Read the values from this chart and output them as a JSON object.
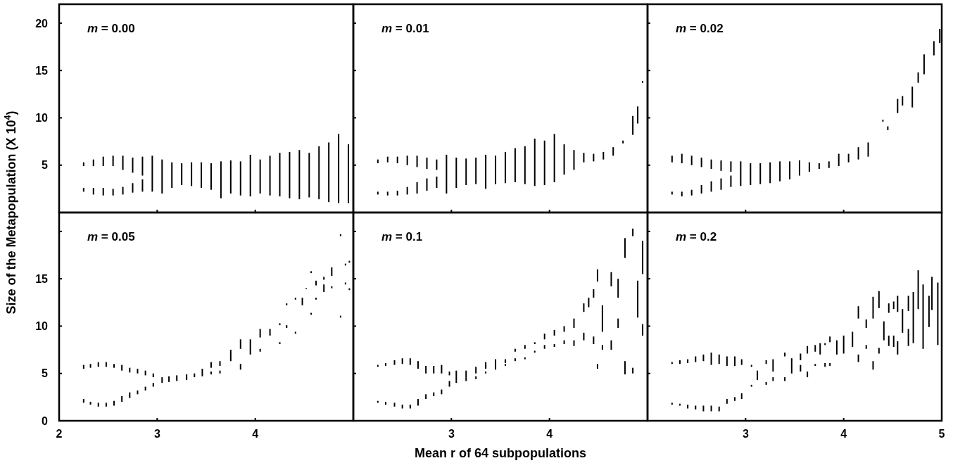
{
  "chart_data": [
    {
      "type": "bar",
      "title": "m = 0.00",
      "ylabel": "Size of the Metapopulation (X 10$^{4}$)",
      "xlim": [
        2,
        5
      ],
      "ylim": [
        0,
        22
      ],
      "xticks": [
        3,
        4
      ],
      "yticks": [
        5,
        10,
        15,
        20
      ],
      "tick_labels": "y",
      "series": [
        {
          "color": "#000000",
          "x": [
            2.25,
            2.35,
            2.45,
            2.55,
            2.65,
            2.75,
            2.85,
            2.95,
            3.05,
            3.15,
            3.25,
            3.35,
            3.45,
            3.55,
            3.65,
            3.75,
            3.85,
            3.95,
            4.05,
            4.15,
            4.25,
            4.35,
            4.45,
            4.55,
            4.65,
            4.75,
            4.85,
            4.95
          ],
          "base": [
            4.9,
            4.9,
            4.9,
            4.9,
            4.5,
            4.2,
            3.9,
            2.2,
            2.0,
            2.6,
            2.9,
            2.8,
            2.6,
            2.4,
            1.5,
            2.0,
            1.8,
            1.7,
            2.0,
            1.8,
            1.7,
            1.5,
            1.4,
            1.6,
            1.4,
            1.1,
            1.0,
            1.0
          ],
          "values": [
            0.4,
            0.7,
            1.0,
            1.1,
            1.5,
            1.6,
            2.0,
            3.8,
            3.6,
            2.7,
            2.3,
            2.5,
            2.7,
            2.8,
            3.9,
            3.5,
            3.6,
            4.4,
            3.6,
            4.2,
            4.6,
            4.9,
            5.2,
            4.7,
            5.6,
            6.3,
            7.3,
            6.2
          ]
        },
        {
          "color": "#000000",
          "x": [
            2.25,
            2.35,
            2.45,
            2.55,
            2.65,
            2.75,
            2.85
          ],
          "base": [
            2.2,
            1.9,
            1.8,
            1.8,
            1.9,
            2.1,
            2.2
          ],
          "values": [
            0.4,
            0.7,
            0.8,
            0.7,
            0.8,
            1.0,
            1.3
          ]
        }
      ]
    },
    {
      "type": "bar",
      "title": "m = 0.01",
      "xlim": [
        2,
        5
      ],
      "ylim": [
        0,
        22
      ],
      "xticks": [
        3,
        4
      ],
      "yticks": [
        5,
        10,
        15,
        20
      ],
      "tick_labels": false,
      "series": [
        {
          "color": "#000000",
          "x": [
            2.25,
            2.35,
            2.45,
            2.55,
            2.65,
            2.75,
            2.85,
            2.95,
            3.05,
            3.15,
            3.25,
            3.35,
            3.45,
            3.55,
            3.65,
            3.75,
            3.85,
            3.95,
            4.05,
            4.15,
            4.25,
            4.35,
            4.45,
            4.55,
            4.65,
            4.75,
            4.85,
            4.9,
            4.95
          ],
          "base": [
            5.2,
            5.3,
            5.2,
            5.0,
            4.8,
            4.6,
            4.5,
            2.0,
            2.6,
            2.9,
            3.0,
            2.5,
            3.0,
            3.1,
            3.2,
            3.0,
            2.8,
            2.9,
            3.2,
            4.0,
            4.5,
            5.3,
            5.4,
            5.6,
            6.0,
            7.3,
            8.2,
            9.4,
            13.7
          ],
          "values": [
            0.4,
            0.6,
            0.7,
            1.0,
            1.2,
            1.2,
            1.1,
            4.1,
            3.2,
            2.8,
            2.8,
            3.6,
            3.0,
            3.3,
            3.6,
            4.0,
            5.0,
            4.7,
            5.1,
            3.2,
            2.1,
            1.0,
            0.8,
            0.8,
            0.9,
            0.3,
            2.0,
            1.8,
            0.2
          ]
        },
        {
          "color": "#000000",
          "x": [
            2.25,
            2.35,
            2.45,
            2.55,
            2.65,
            2.75,
            2.85
          ],
          "base": [
            1.9,
            1.8,
            1.8,
            1.9,
            2.0,
            2.3,
            2.6
          ],
          "values": [
            0.3,
            0.4,
            0.5,
            0.8,
            1.2,
            1.3,
            1.2
          ]
        }
      ]
    },
    {
      "type": "bar",
      "title": "m = 0.02",
      "xlim": [
        2,
        5
      ],
      "ylim": [
        0,
        22
      ],
      "xticks": [
        3,
        4
      ],
      "yticks": [
        5,
        10,
        15,
        20
      ],
      "tick_labels": false,
      "series": [
        {
          "color": "#000000",
          "x": [
            2.25,
            2.35,
            2.45,
            2.55,
            2.65,
            2.75,
            2.85,
            2.95,
            3.05,
            3.15,
            3.25,
            3.35,
            3.45,
            3.55,
            3.65,
            3.75,
            3.85,
            3.95,
            4.05,
            4.15,
            4.25,
            4.4,
            4.45,
            4.55,
            4.6,
            4.7,
            4.76,
            4.82,
            4.92,
            4.98
          ],
          "base": [
            5.3,
            5.2,
            5.0,
            4.8,
            4.6,
            4.4,
            4.3,
            2.8,
            2.9,
            3.0,
            3.1,
            3.3,
            3.5,
            3.9,
            4.3,
            4.6,
            4.7,
            4.9,
            5.3,
            5.6,
            5.9,
            9.6,
            8.7,
            10.5,
            11.3,
            11.1,
            13.7,
            14.6,
            16.6,
            17.9
          ],
          "values": [
            0.7,
            1.0,
            1.0,
            1.0,
            1.0,
            1.1,
            1.1,
            2.6,
            2.3,
            2.2,
            2.2,
            2.1,
            1.9,
            1.6,
            1.0,
            0.6,
            0.7,
            1.3,
            0.9,
            1.3,
            1.5,
            0.2,
            0.4,
            1.5,
            1.0,
            2.2,
            1.1,
            2.1,
            1.5,
            1.5
          ]
        },
        {
          "color": "#000000",
          "x": [
            2.25,
            2.35,
            2.45,
            2.55,
            2.65,
            2.75,
            2.85
          ],
          "base": [
            1.9,
            1.7,
            1.8,
            2.0,
            2.2,
            2.4,
            2.7
          ],
          "values": [
            0.3,
            0.5,
            0.6,
            0.9,
            1.1,
            1.2,
            1.2
          ]
        }
      ]
    },
    {
      "type": "bar",
      "title": "m = 0.05",
      "xlim": [
        2,
        5
      ],
      "ylim": [
        0,
        22
      ],
      "xticks": [
        2,
        3,
        4
      ],
      "yticks": [
        0,
        5,
        10,
        15,
        {
          "value": 20,
          "label": null
        }
      ],
      "series": [
        {
          "color": "#000000",
          "x": [
            2.25,
            2.32,
            2.4,
            2.48,
            2.56,
            2.64,
            2.72,
            2.8,
            2.88,
            2.96,
            3.05,
            3.12,
            3.2,
            3.3,
            3.38,
            3.46,
            3.55,
            3.64,
            3.75,
            3.85,
            3.95,
            4.05,
            4.15,
            4.25,
            4.32,
            4.41,
            4.48,
            4.52,
            4.57,
            4.62,
            4.7,
            4.78,
            4.87,
            4.92,
            4.96
          ],
          "base": [
            5.5,
            5.6,
            5.7,
            5.7,
            5.6,
            5.3,
            5.1,
            5.0,
            4.8,
            4.6,
            4.0,
            4.1,
            4.2,
            4.3,
            4.6,
            4.7,
            5.6,
            5.8,
            6.3,
            7.6,
            7.0,
            8.8,
            9.0,
            10.1,
            12.2,
            12.8,
            12.2,
            13.9,
            15.6,
            14.3,
            14.9,
            15.3,
            19.5,
            16.4,
            16.7
          ],
          "values": [
            0.4,
            0.4,
            0.5,
            0.5,
            0.4,
            0.6,
            0.5,
            0.5,
            0.5,
            0.4,
            0.6,
            0.6,
            0.6,
            0.6,
            0.4,
            0.8,
            0.6,
            0.5,
            1.2,
            1.0,
            1.6,
            0.9,
            0.7,
            0.2,
            0.2,
            0.2,
            0.8,
            0.1,
            0.2,
            0.5,
            0.3,
            0.9,
            0.2,
            0.2,
            0.2
          ]
        },
        {
          "color": "#000000",
          "x": [
            2.25,
            2.32,
            2.4,
            2.48,
            2.56,
            2.64,
            2.72,
            2.8,
            2.88,
            2.96,
            3.55,
            3.64,
            3.85,
            4.05,
            4.25,
            4.32,
            4.41,
            4.57,
            4.62,
            4.7,
            4.78,
            4.87,
            4.92,
            4.96
          ],
          "base": [
            1.9,
            1.7,
            1.5,
            1.5,
            1.6,
            2.0,
            2.4,
            2.8,
            3.2,
            3.6,
            4.9,
            5.0,
            5.4,
            7.3,
            8.1,
            9.8,
            9.2,
            11.2,
            12.8,
            13.6,
            14.0,
            10.9,
            14.4,
            13.8
          ],
          "values": [
            0.4,
            0.3,
            0.4,
            0.4,
            0.5,
            0.6,
            0.6,
            0.4,
            0.4,
            0.4,
            0.3,
            0.3,
            0.6,
            0.3,
            0.2,
            0.3,
            0.2,
            0.2,
            0.2,
            0.8,
            0.2,
            0.2,
            0.2,
            0.2
          ]
        }
      ]
    },
    {
      "type": "bar",
      "title": "m = 0.1",
      "xlabel": "Mean r of 64 subpopulations",
      "xlim": [
        2,
        5
      ],
      "ylim": [
        0,
        22
      ],
      "xticks": [
        3,
        4
      ],
      "yticks": [
        0,
        5,
        10,
        15,
        20
      ],
      "tick_labels": "x",
      "series": [
        {
          "color": "#000000",
          "x": [
            2.25,
            2.33,
            2.42,
            2.5,
            2.58,
            2.66,
            2.74,
            2.82,
            2.9,
            2.98,
            3.05,
            3.15,
            3.25,
            3.35,
            3.45,
            3.55,
            3.65,
            3.75,
            3.85,
            3.95,
            4.05,
            4.15,
            4.25,
            4.35,
            4.4,
            4.45,
            4.49,
            4.54,
            4.63,
            4.7,
            4.77,
            4.85,
            4.9,
            4.95
          ],
          "base": [
            5.7,
            5.8,
            5.9,
            6.0,
            5.9,
            5.5,
            5.0,
            5.0,
            5.0,
            4.8,
            4.3,
            4.6,
            5.0,
            5.5,
            5.8,
            6.1,
            7.3,
            7.6,
            8.1,
            8.6,
            9.0,
            9.4,
            9.8,
            11.5,
            12.0,
            13.0,
            14.7,
            9.4,
            14.2,
            13.0,
            17.2,
            19.5,
            10.9,
            15.5
          ],
          "values": [
            0.2,
            0.3,
            0.5,
            0.6,
            0.7,
            0.8,
            0.8,
            0.8,
            0.9,
            0.4,
            1.0,
            0.7,
            0.7,
            0.7,
            0.7,
            0.4,
            0.3,
            0.4,
            0.2,
            0.6,
            0.6,
            0.6,
            1.0,
            0.9,
            1.0,
            0.9,
            1.3,
            2.8,
            1.5,
            2.0,
            2.1,
            0.8,
            3.9,
            3.5
          ]
        },
        {
          "color": "#000000",
          "x": [
            2.25,
            2.33,
            2.42,
            2.5,
            2.58,
            2.66,
            2.74,
            2.82,
            2.9,
            2.98,
            3.05,
            3.15,
            3.25,
            3.35,
            3.45,
            3.55,
            3.65,
            3.75,
            3.85,
            3.95,
            4.05,
            4.15,
            4.25,
            4.35,
            4.45,
            4.49,
            4.54,
            4.63,
            4.7,
            4.77,
            4.85,
            4.95
          ],
          "base": [
            1.9,
            1.7,
            1.5,
            1.3,
            1.3,
            1.6,
            2.3,
            2.6,
            2.8,
            3.6,
            4.0,
            4.2,
            4.4,
            5.0,
            5.4,
            5.8,
            6.3,
            6.5,
            7.2,
            7.6,
            7.8,
            8.1,
            7.9,
            8.5,
            8.1,
            5.5,
            7.5,
            7.5,
            9.8,
            4.9,
            5.0,
            9.0
          ],
          "values": [
            0.2,
            0.3,
            0.4,
            0.4,
            0.4,
            0.7,
            0.5,
            0.4,
            0.5,
            0.6,
            0.3,
            0.4,
            0.3,
            0.2,
            0.4,
            0.2,
            0.3,
            0.2,
            0.2,
            0.4,
            0.3,
            0.4,
            0.6,
            0.8,
            0.8,
            0.5,
            0.5,
            1.0,
            1.0,
            1.4,
            0.6,
            1.2
          ]
        }
      ]
    },
    {
      "type": "bar",
      "title": "m = 0.2",
      "xlim": [
        2,
        5
      ],
      "ylim": [
        0,
        22
      ],
      "xticks": [
        3,
        4,
        5
      ],
      "yticks": [
        0,
        5,
        10,
        15,
        20
      ],
      "tick_labels": "x",
      "series": [
        {
          "color": "#000000",
          "x": [
            2.25,
            2.33,
            2.41,
            2.49,
            2.57,
            2.65,
            2.73,
            2.81,
            2.89,
            2.96,
            3.06,
            3.12,
            3.21,
            3.28,
            3.4,
            3.47,
            3.56,
            3.63,
            3.71,
            3.76,
            3.81,
            3.86,
            3.93,
            4.0,
            4.09,
            4.15,
            4.23,
            4.3,
            4.36,
            4.41,
            4.46,
            4.51,
            4.55,
            4.6,
            4.66,
            4.71,
            4.76,
            4.81,
            4.87,
            4.9,
            4.96
          ],
          "base": [
            6.0,
            6.0,
            6.1,
            6.2,
            6.3,
            5.9,
            6.0,
            5.8,
            5.8,
            5.9,
            5.7,
            4.3,
            6.0,
            5.2,
            6.8,
            5.0,
            6.4,
            7.1,
            7.3,
            7.0,
            8.0,
            8.3,
            7.0,
            7.1,
            7.8,
            10.8,
            9.8,
            10.8,
            11.9,
            8.5,
            11.4,
            11.8,
            11.5,
            9.3,
            11.6,
            8.2,
            11.8,
            7.6,
            9.9,
            11.7,
            8.0
          ],
          "values": [
            0.2,
            0.4,
            0.4,
            0.6,
            0.7,
            1.3,
            1.0,
            1.0,
            1.0,
            0.6,
            0.2,
            1.0,
            0.4,
            1.3,
            0.4,
            1.6,
            0.7,
            0.8,
            0.7,
            1.2,
            0.2,
            0.6,
            1.5,
            1.9,
            1.6,
            1.3,
            0.9,
            2.3,
            1.8,
            2.0,
            1.0,
            0.8,
            1.7,
            2.5,
            1.6,
            5.4,
            4.1,
            6.8,
            3.3,
            3.5,
            6.6
          ]
        },
        {
          "color": "#000000",
          "x": [
            2.25,
            2.33,
            2.41,
            2.49,
            2.57,
            2.65,
            2.73,
            2.81,
            2.89,
            2.96,
            3.06,
            3.21,
            3.28,
            3.4,
            3.56,
            3.63,
            3.71,
            3.81,
            3.86,
            4.15,
            4.23,
            4.3,
            4.36,
            4.46,
            4.51,
            4.55,
            4.66
          ],
          "base": [
            1.7,
            1.6,
            1.3,
            1.2,
            1.0,
            1.0,
            1.0,
            1.8,
            2.1,
            2.3,
            3.6,
            3.8,
            4.2,
            4.2,
            5.2,
            4.6,
            5.8,
            5.7,
            5.8,
            6.2,
            7.6,
            5.4,
            7.1,
            7.9,
            7.8,
            7.0,
            7.9
          ],
          "values": [
            0.2,
            0.2,
            0.4,
            0.4,
            0.6,
            0.6,
            0.5,
            0.5,
            0.4,
            0.6,
            0.2,
            0.3,
            0.4,
            0.4,
            0.7,
            0.6,
            0.2,
            0.4,
            0.3,
            0.8,
            0.4,
            0.9,
            0.6,
            1.1,
            1.2,
            1.4,
            1.8
          ]
        }
      ]
    }
  ]
}
